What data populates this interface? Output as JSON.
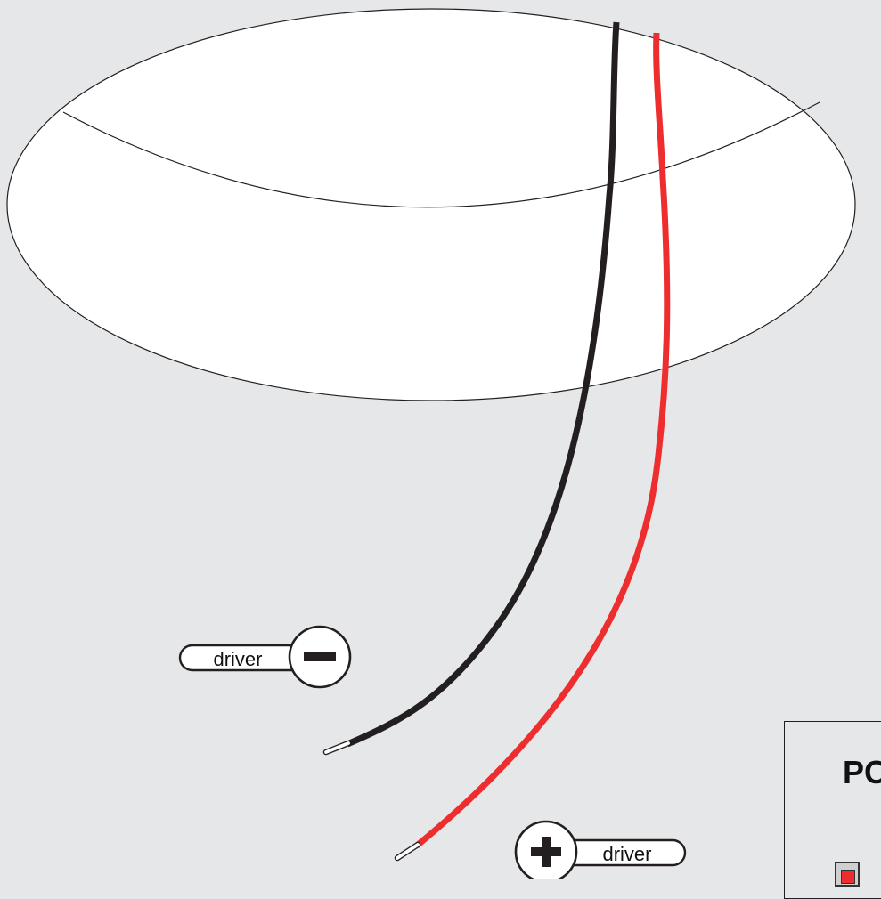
{
  "negative_label": {
    "text": "driver",
    "symbol": "minus",
    "icon": "minus-circle-icon"
  },
  "positive_label": {
    "text": "driver",
    "symbol": "plus",
    "icon": "plus-circle-icon"
  },
  "legend": {
    "title": "PC",
    "swatch_color": "#ed2d2e"
  },
  "colors": {
    "background": "#e6e7e8",
    "fixture": "#ffffff",
    "negative_wire": "#231f20",
    "positive_wire": "#ed2d2e",
    "outline": "#231f20"
  }
}
